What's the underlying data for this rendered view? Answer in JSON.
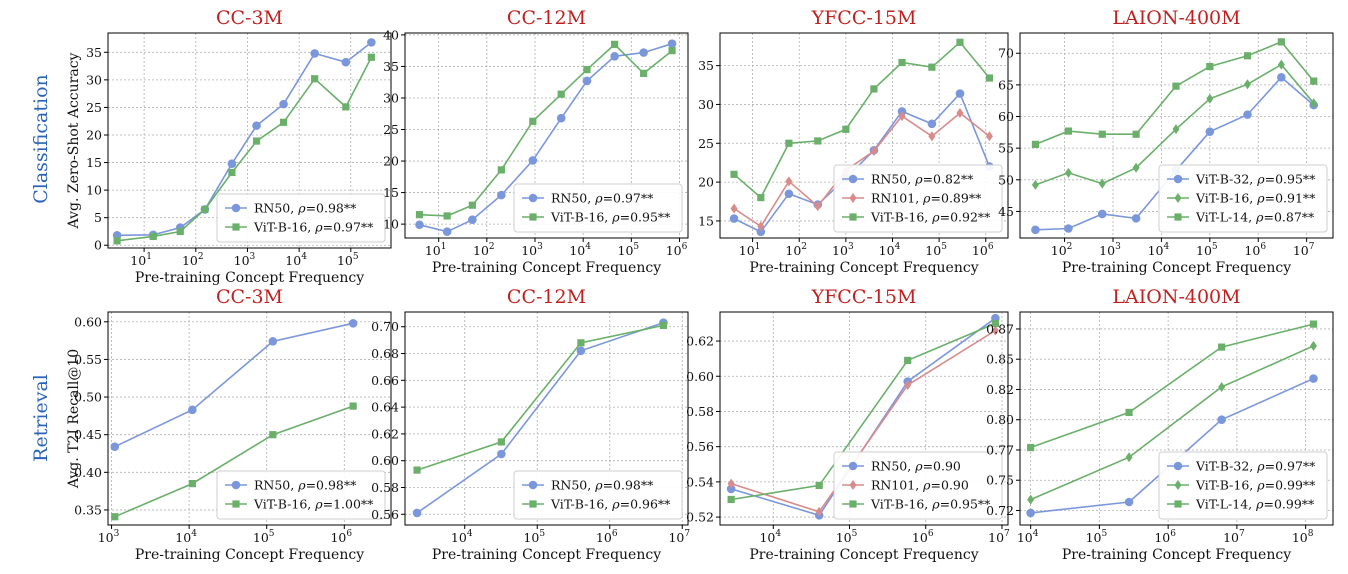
{
  "row_labels": [
    "Classification",
    "Retrieval"
  ],
  "colors": {
    "RN50": "#7b97dc",
    "RN101": "#d98a8a",
    "ViT-B-16": "#6ab06a",
    "ViT-B-32": "#7b97dc",
    "ViT-L-14": "#6ab06a",
    "title": "#c0201f",
    "row_label": "#2a64b8"
  },
  "chart_data": [
    {
      "type": "line",
      "title": "CC-3M",
      "xlabel": "Pre-training Concept Frequency",
      "ylabel": "Avg. Zero-Shot Accuracy",
      "xscale": "log",
      "xlim": [
        2,
        600000
      ],
      "xticks": [
        1,
        2,
        3,
        4,
        5
      ],
      "ylim": [
        -0.5,
        38.5
      ],
      "yticks": [
        0,
        5,
        10,
        15,
        20,
        25,
        30,
        35
      ],
      "ytick_labels": [
        "0",
        "5",
        "10",
        "15",
        "20",
        "25",
        "30",
        "35"
      ],
      "legend": "lower-right",
      "series": [
        {
          "name": "RN50",
          "rho": "0.98**",
          "marker": "circle",
          "x": [
            3,
            15,
            50,
            150,
            500,
            1500,
            5000,
            20000,
            80000,
            250000
          ],
          "y": [
            1.8,
            1.9,
            3.2,
            6.5,
            14.8,
            21.7,
            25.6,
            34.8,
            33.2,
            36.8
          ]
        },
        {
          "name": "ViT-B-16",
          "rho": "0.97**",
          "marker": "square",
          "x": [
            3,
            15,
            50,
            150,
            500,
            1500,
            5000,
            20000,
            80000,
            250000
          ],
          "y": [
            0.8,
            1.6,
            2.5,
            6.5,
            13.2,
            18.9,
            22.3,
            30.2,
            25.1,
            34.1
          ]
        }
      ]
    },
    {
      "type": "line",
      "title": "CC-12M",
      "xlabel": "Pre-training Concept Frequency",
      "ylabel": "",
      "xscale": "log",
      "xlim": [
        2,
        1500000
      ],
      "xticks": [
        1,
        2,
        3,
        4,
        5,
        6
      ],
      "ylim": [
        7.8,
        40.3
      ],
      "yticks": [
        10,
        15,
        20,
        25,
        30,
        35,
        40
      ],
      "ytick_labels": [
        "10",
        "15",
        "20",
        "25",
        "30",
        "35",
        "40"
      ],
      "legend": "lower-right",
      "series": [
        {
          "name": "RN50",
          "rho": "0.97**",
          "marker": "circle",
          "x": [
            4,
            15,
            50,
            200,
            900,
            3500,
            12000,
            45000,
            180000,
            700000
          ],
          "y": [
            9.9,
            8.8,
            10.7,
            14.6,
            20.1,
            26.8,
            32.7,
            36.6,
            37.2,
            38.6
          ]
        },
        {
          "name": "ViT-B-16",
          "rho": "0.95**",
          "marker": "square",
          "x": [
            4,
            15,
            50,
            200,
            900,
            3500,
            12000,
            45000,
            180000,
            700000
          ],
          "y": [
            11.5,
            11.3,
            13.0,
            18.6,
            26.3,
            30.6,
            34.5,
            38.5,
            33.9,
            37.5
          ]
        }
      ]
    },
    {
      "type": "line",
      "title": "YFCC-15M",
      "xlabel": "Pre-training Concept Frequency",
      "ylabel": "",
      "xscale": "log",
      "xlim": [
        2,
        3000000
      ],
      "xticks": [
        1,
        2,
        3,
        4,
        5,
        6
      ],
      "ylim": [
        12.8,
        39.2
      ],
      "yticks": [
        15,
        20,
        25,
        30,
        35
      ],
      "ytick_labels": [
        "15",
        "20",
        "25",
        "30",
        "35"
      ],
      "legend": "lower-right",
      "series": [
        {
          "name": "RN50",
          "rho": "0.82**",
          "marker": "circle",
          "x": [
            4,
            15,
            60,
            250,
            1000,
            4000,
            16000,
            70000,
            280000,
            1200000
          ],
          "y": [
            15.3,
            13.6,
            18.5,
            17.1,
            20.5,
            24.1,
            29.1,
            27.5,
            31.4,
            22.0
          ]
        },
        {
          "name": "RN101",
          "rho": "0.89**",
          "marker": "diamond",
          "x": [
            4,
            15,
            60,
            250,
            1000,
            4000,
            16000,
            70000,
            280000,
            1200000
          ],
          "y": [
            16.6,
            14.3,
            20.1,
            16.9,
            21.5,
            24.0,
            28.5,
            25.9,
            28.9,
            25.9
          ]
        },
        {
          "name": "ViT-B-16",
          "rho": "0.92**",
          "marker": "square",
          "x": [
            4,
            15,
            60,
            250,
            1000,
            4000,
            16000,
            70000,
            280000,
            1200000
          ],
          "y": [
            21.0,
            18.0,
            25.0,
            25.3,
            26.8,
            32.0,
            35.4,
            34.8,
            38.0,
            33.4
          ]
        }
      ]
    },
    {
      "type": "line",
      "title": "LAION-400M",
      "xlabel": "Pre-training Concept Frequency",
      "ylabel": "",
      "xscale": "log",
      "xlim": [
        12,
        35000000
      ],
      "xticks": [
        2,
        3,
        4,
        5,
        6,
        7
      ],
      "ylim": [
        40.8,
        73.2
      ],
      "yticks": [
        45,
        50,
        55,
        60,
        65,
        70
      ],
      "ytick_labels": [
        "45",
        "50",
        "55",
        "60",
        "65",
        "70"
      ],
      "legend": "lower-right",
      "series": [
        {
          "name": "ViT-B-32",
          "rho": "0.95**",
          "marker": "circle",
          "x": [
            25,
            120,
            600,
            3000,
            20000,
            100000,
            600000,
            3000000,
            14000000
          ],
          "y": [
            42.1,
            42.3,
            44.6,
            43.9,
            51.5,
            57.6,
            60.3,
            66.2,
            61.8
          ]
        },
        {
          "name": "ViT-B-16",
          "rho": "0.91**",
          "marker": "diamond",
          "x": [
            25,
            120,
            600,
            3000,
            20000,
            100000,
            600000,
            3000000,
            14000000
          ],
          "y": [
            49.2,
            51.1,
            49.4,
            51.9,
            58.0,
            62.8,
            65.1,
            68.2,
            62.1
          ]
        },
        {
          "name": "ViT-L-14",
          "rho": "0.87**",
          "marker": "square",
          "x": [
            25,
            120,
            600,
            3000,
            20000,
            100000,
            600000,
            3000000,
            14000000
          ],
          "y": [
            55.6,
            57.7,
            57.2,
            57.2,
            64.8,
            67.9,
            69.6,
            71.8,
            65.6
          ]
        }
      ]
    },
    {
      "type": "line",
      "title": "CC-3M",
      "xlabel": "Pre-training Concept Frequency",
      "ylabel": "Avg. T2I Recall@10",
      "xscale": "log",
      "xlim": [
        900,
        4000000
      ],
      "xticks": [
        3,
        4,
        5,
        6
      ],
      "ylim": [
        0.33,
        0.613
      ],
      "yticks": [
        0.35,
        0.4,
        0.45,
        0.5,
        0.55,
        0.6
      ],
      "ytick_labels": [
        "0.35",
        "0.40",
        "0.45",
        "0.50",
        "0.55",
        "0.60"
      ],
      "legend": "lower-right",
      "series": [
        {
          "name": "RN50",
          "rho": "0.98**",
          "marker": "circle",
          "x": [
            1100,
            11000,
            120000,
            1300000
          ],
          "y": [
            0.434,
            0.483,
            0.574,
            0.598
          ]
        },
        {
          "name": "ViT-B-16",
          "rho": "1.00**",
          "marker": "square",
          "x": [
            1100,
            11000,
            120000,
            1300000
          ],
          "y": [
            0.341,
            0.385,
            0.45,
            0.488
          ]
        }
      ]
    },
    {
      "type": "line",
      "title": "CC-12M",
      "xlabel": "Pre-training Concept Frequency",
      "ylabel": "",
      "xscale": "log",
      "xlim": [
        1500,
        12000000
      ],
      "xticks": [
        4,
        5,
        6,
        7
      ],
      "ylim": [
        0.552,
        0.711
      ],
      "yticks": [
        0.56,
        0.58,
        0.6,
        0.62,
        0.64,
        0.66,
        0.68,
        0.7
      ],
      "ytick_labels": [
        "0.56",
        "0.58",
        "0.60",
        "0.62",
        "0.64",
        "0.66",
        "0.68",
        "0.70"
      ],
      "legend": "lower-right",
      "series": [
        {
          "name": "RN50",
          "rho": "0.98**",
          "marker": "circle",
          "x": [
            2200,
            32000,
            400000,
            5500000
          ],
          "y": [
            0.561,
            0.605,
            0.682,
            0.703
          ]
        },
        {
          "name": "ViT-B-16",
          "rho": "0.96**",
          "marker": "square",
          "x": [
            2200,
            32000,
            400000,
            5500000
          ],
          "y": [
            0.593,
            0.614,
            0.688,
            0.701
          ]
        }
      ]
    },
    {
      "type": "line",
      "title": "YFCC-15M",
      "xlabel": "Pre-training Concept Frequency",
      "ylabel": "",
      "xscale": "log",
      "xlim": [
        2000,
        12000000
      ],
      "xticks": [
        4,
        5,
        6,
        7
      ],
      "ylim": [
        0.5155,
        0.6365
      ],
      "yticks": [
        0.52,
        0.54,
        0.56,
        0.58,
        0.6,
        0.62
      ],
      "ytick_labels": [
        "0.52",
        "0.54",
        "0.56",
        "0.58",
        "0.60",
        "0.62"
      ],
      "legend": "lower-right",
      "series": [
        {
          "name": "RN50",
          "rho": "0.90",
          "marker": "circle",
          "x": [
            2800,
            40000,
            580000,
            8200000
          ],
          "y": [
            0.536,
            0.521,
            0.597,
            0.633
          ]
        },
        {
          "name": "RN101",
          "rho": "0.90",
          "marker": "diamond",
          "x": [
            2800,
            40000,
            580000,
            8200000
          ],
          "y": [
            0.539,
            0.523,
            0.595,
            0.626
          ]
        },
        {
          "name": "ViT-B-16",
          "rho": "0.95**",
          "marker": "square",
          "x": [
            2800,
            40000,
            580000,
            8200000
          ],
          "y": [
            0.53,
            0.538,
            0.609,
            0.63
          ]
        }
      ]
    },
    {
      "type": "line",
      "title": "LAION-400M",
      "xlabel": "Pre-training Concept Frequency",
      "ylabel": "",
      "xscale": "log",
      "xlim": [
        7000,
        250000000
      ],
      "xticks": [
        4,
        5,
        6,
        7,
        8
      ],
      "ylim": [
        0.708,
        0.884
      ],
      "yticks": [
        0.72,
        0.745,
        0.77,
        0.795,
        0.82,
        0.845,
        0.87
      ],
      "ytick_labels": [
        "0.72",
        "0.75",
        "0.77",
        "0.80",
        "0.82",
        "0.85",
        "0.87"
      ],
      "legend": "lower-right",
      "series": [
        {
          "name": "ViT-B-32",
          "rho": "0.97**",
          "marker": "circle",
          "x": [
            10000,
            270000,
            6000000,
            130000000
          ],
          "y": [
            0.718,
            0.727,
            0.795,
            0.829
          ]
        },
        {
          "name": "ViT-B-16",
          "rho": "0.99**",
          "marker": "diamond",
          "x": [
            10000,
            270000,
            6000000,
            130000000
          ],
          "y": [
            0.729,
            0.764,
            0.822,
            0.856
          ]
        },
        {
          "name": "ViT-L-14",
          "rho": "0.99**",
          "marker": "square",
          "x": [
            10000,
            270000,
            6000000,
            130000000
          ],
          "y": [
            0.772,
            0.801,
            0.855,
            0.874
          ]
        }
      ]
    }
  ]
}
